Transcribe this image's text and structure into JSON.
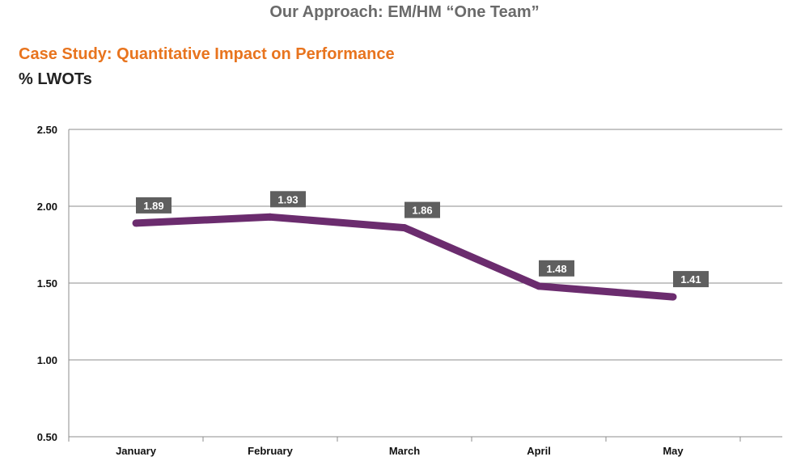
{
  "header": {
    "title": "Our Approach: EM/HM “One Team”",
    "subtitle": "Case Study: Quantitative Impact on Performance",
    "unit_label": "% LWOTs"
  },
  "colors": {
    "title": "#6a6a6a",
    "subtitle": "#e8741e",
    "line": "#6b2c6e",
    "data_label_bg": "#5f5f5f",
    "grid": "#8c8c8c"
  },
  "chart_data": {
    "type": "line",
    "title": "",
    "xlabel": "",
    "ylabel": "% LWOTs",
    "categories": [
      "January",
      "February",
      "March",
      "April",
      "May"
    ],
    "series": [
      {
        "values": [
          1.89,
          1.93,
          1.86,
          1.48,
          1.41
        ]
      }
    ],
    "data_labels": [
      "1.89",
      "1.93",
      "1.86",
      "1.48",
      "1.41"
    ],
    "y_ticks": [
      "2.50",
      "2.00",
      "1.50",
      "1.00",
      "0.50"
    ],
    "ylim": [
      0.5,
      2.5
    ],
    "grid": true,
    "legend": "none"
  }
}
